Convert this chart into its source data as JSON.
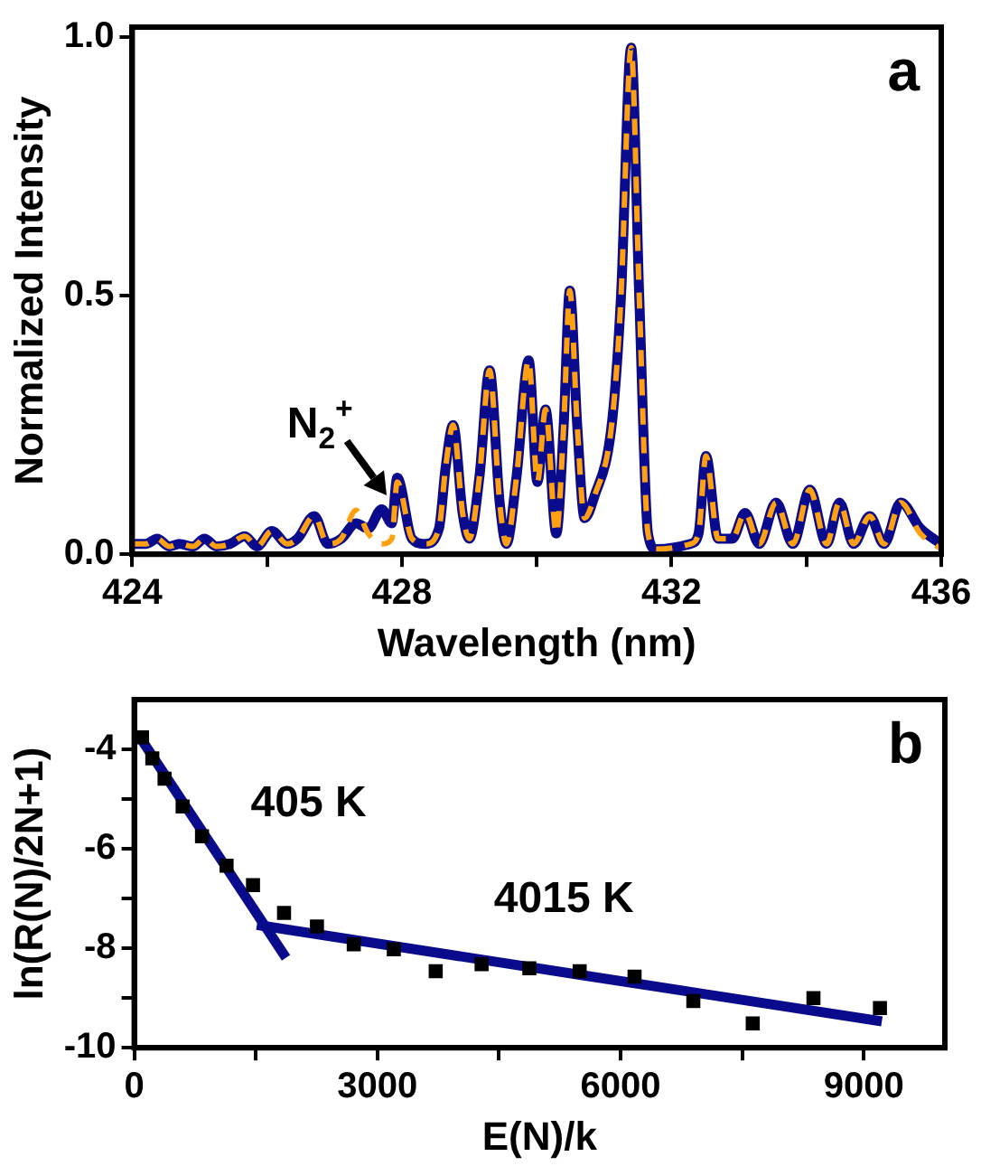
{
  "chart_data": [
    {
      "type": "line",
      "xlabel": "Wavelength (nm)",
      "ylabel": "Normalized Intensity",
      "xlim": [
        424,
        436
      ],
      "ylim": [
        0,
        1.02
      ],
      "xticks": [
        424,
        {
          "value": 426,
          "label": null
        },
        428,
        {
          "value": 430,
          "label": null
        },
        432,
        {
          "value": 434,
          "label": null
        },
        436
      ],
      "yticks": [
        {
          "value": 0,
          "label": "0.0"
        },
        {
          "value": 0.5,
          "label": "0.5"
        },
        {
          "value": 1,
          "label": "1.0"
        }
      ],
      "x": [
        424.0,
        424.2,
        424.37,
        424.55,
        424.7,
        424.9,
        425.07,
        425.25,
        425.45,
        425.67,
        425.85,
        426.07,
        426.3,
        426.45,
        426.7,
        426.9,
        427.1,
        427.32,
        427.5,
        427.7,
        427.85,
        427.93,
        428.15,
        428.35,
        428.55,
        428.65,
        428.76,
        428.9,
        429.0,
        429.15,
        429.3,
        429.45,
        429.55,
        429.7,
        429.88,
        430.01,
        430.13,
        430.29,
        430.4,
        430.49,
        430.6,
        430.71,
        430.85,
        431.12,
        431.25,
        431.4,
        431.52,
        431.65,
        431.77,
        432.28,
        432.4,
        432.51,
        432.69,
        432.9,
        433.09,
        433.3,
        433.55,
        433.8,
        434.05,
        434.3,
        434.49,
        434.7,
        434.94,
        435.15,
        435.4,
        435.69,
        436.0
      ],
      "series": [
        {
          "color": "#0a0a8c",
          "line_style": "solid",
          "values": [
            0.02,
            0.02,
            0.03,
            0.015,
            0.02,
            0.015,
            0.03,
            0.015,
            0.02,
            0.035,
            0.015,
            0.045,
            0.02,
            0.03,
            0.074,
            0.02,
            0.03,
            0.06,
            0.05,
            0.087,
            0.06,
            0.148,
            0.03,
            0.02,
            0.05,
            0.17,
            0.25,
            0.08,
            0.03,
            0.15,
            0.356,
            0.1,
            0.02,
            0.15,
            0.375,
            0.14,
            0.28,
            0.04,
            0.25,
            0.51,
            0.25,
            0.07,
            0.11,
            0.26,
            0.5,
            0.98,
            0.5,
            0.04,
            0.01,
            0.02,
            0.04,
            0.19,
            0.03,
            0.03,
            0.08,
            0.02,
            0.1,
            0.02,
            0.125,
            0.02,
            0.1,
            0.02,
            0.074,
            0.02,
            0.1,
            0.05,
            0.02
          ]
        },
        {
          "color": "#ffa010",
          "line_style": "dashed",
          "values": [
            0.02,
            0.02,
            0.03,
            0.015,
            0.02,
            0.015,
            0.03,
            0.015,
            0.02,
            0.035,
            0.015,
            0.045,
            0.02,
            0.03,
            0.074,
            0.02,
            0.03,
            0.085,
            0.04,
            0.02,
            0.03,
            0.14,
            0.03,
            0.02,
            0.05,
            0.17,
            0.25,
            0.08,
            0.03,
            0.15,
            0.356,
            0.1,
            0.02,
            0.15,
            0.375,
            0.14,
            0.28,
            0.04,
            0.25,
            0.51,
            0.25,
            0.07,
            0.11,
            0.26,
            0.5,
            0.98,
            0.5,
            0.04,
            0.01,
            0.02,
            0.04,
            0.19,
            0.03,
            0.03,
            0.08,
            0.02,
            0.1,
            0.02,
            0.125,
            0.02,
            0.1,
            0.02,
            0.074,
            0.02,
            0.1,
            0.04,
            0.01
          ]
        }
      ],
      "annotations": [
        "a",
        "N$_{2}$$^{+}$"
      ]
    },
    {
      "type": "scatter",
      "xlabel": "E(N)/k",
      "ylabel": "ln(R(N)/2N+1)",
      "xlim": [
        0,
        10000
      ],
      "ylim": [
        -10,
        -3
      ],
      "xticks": [
        0,
        {
          "value": 1500,
          "label": null
        },
        3000,
        {
          "value": 4500,
          "label": null
        },
        6000,
        {
          "value": 7500,
          "label": null
        },
        9000
      ],
      "yticks": [
        -10,
        {
          "value": -9,
          "label": null
        },
        -8,
        {
          "value": -7,
          "label": null
        },
        -6,
        {
          "value": -5,
          "label": null
        },
        -4
      ],
      "series": [
        {
          "type": "scatter",
          "color": "#000000",
          "marker": "square",
          "x": [
            96,
            223,
            374,
            597,
            836,
            1139,
            1465,
            1848,
            2254,
            2708,
            3202,
            3719,
            4285,
            4874,
            5495,
            6172,
            6897,
            7630,
            8379,
            9199
          ],
          "values": [
            -3.76,
            -4.18,
            -4.59,
            -5.15,
            -5.75,
            -6.34,
            -6.73,
            -7.29,
            -7.56,
            -7.92,
            -8.02,
            -8.46,
            -8.32,
            -8.4,
            -8.46,
            -8.57,
            -9.06,
            -9.51,
            -9.0,
            -9.2
          ]
        },
        {
          "type": "line",
          "color": "#0a0a8c",
          "line_style": "solid",
          "x": [
            96,
            1872
          ],
          "values": [
            -3.82,
            -8.19
          ]
        },
        {
          "type": "line",
          "color": "#0a0a8c",
          "line_style": "solid",
          "x": [
            1513,
            9223
          ],
          "values": [
            -7.53,
            -9.47
          ]
        }
      ],
      "annotations": [
        "b",
        "405 K",
        "4015 K"
      ]
    }
  ]
}
